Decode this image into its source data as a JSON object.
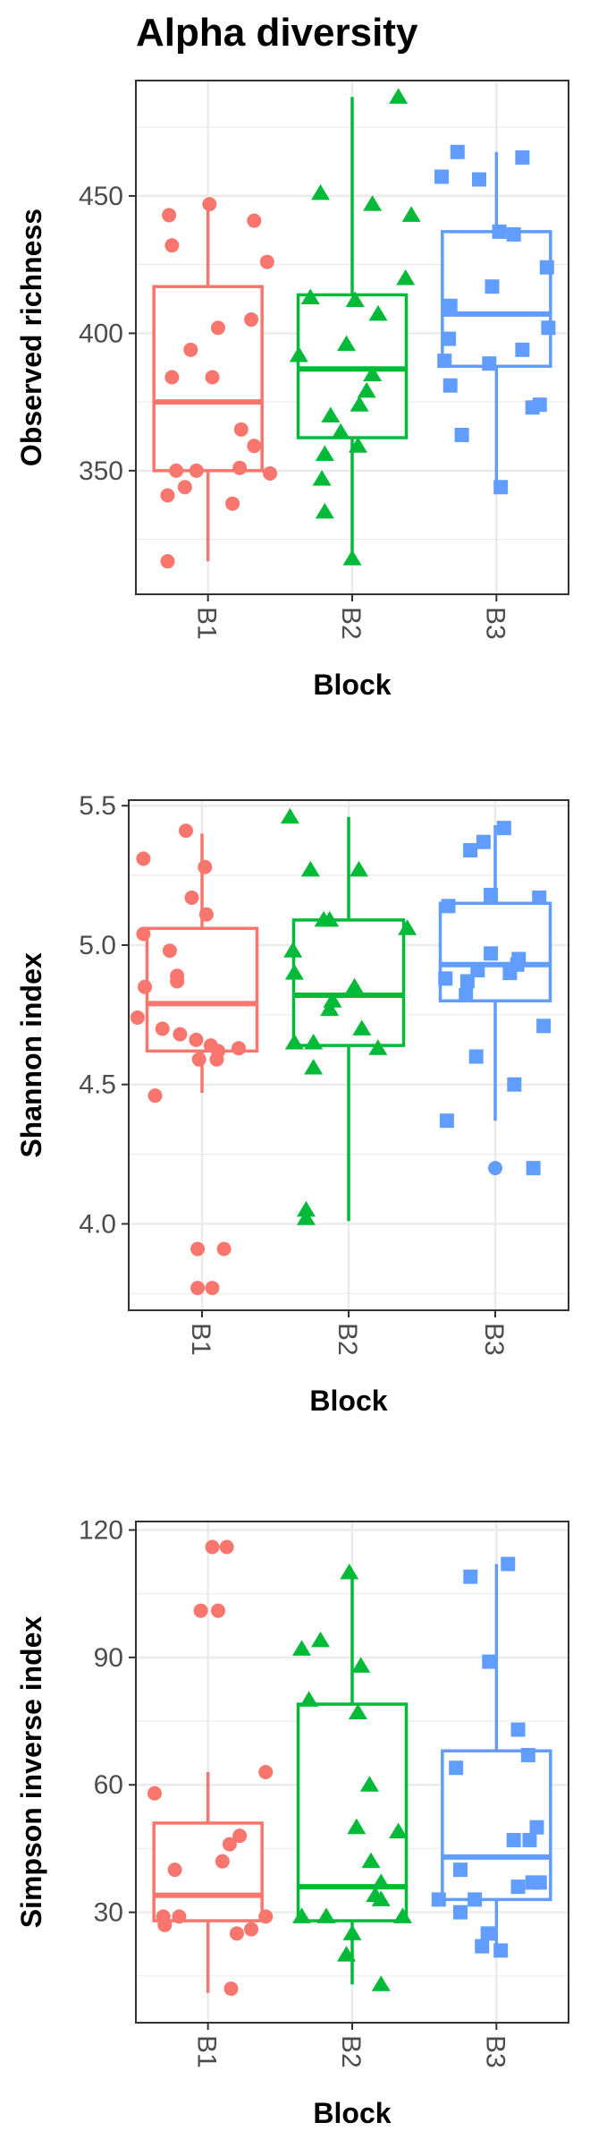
{
  "title": "Alpha diversity",
  "colors": {
    "B1": "#F8766D",
    "B2": "#00BA38",
    "B3": "#619CFF"
  },
  "chart_data": [
    {
      "type": "box",
      "xlabel": "Block",
      "ylabel": "Observed richness",
      "categories": [
        "B1",
        "B2",
        "B3"
      ],
      "ylim": [
        305,
        492
      ],
      "yticks": [
        350,
        400,
        450
      ],
      "grid": true,
      "boxes": [
        {
          "name": "B1",
          "q1": 350,
          "median": 375,
          "q3": 417,
          "whisker_low": 317,
          "whisker_high": 447
        },
        {
          "name": "B2",
          "q1": 362,
          "median": 387,
          "q3": 414,
          "whisker_low": 318,
          "whisker_high": 486
        },
        {
          "name": "B3",
          "q1": 388,
          "median": 407,
          "q3": 437,
          "whisker_low": 344,
          "whisker_high": 466
        }
      ],
      "points": [
        {
          "name": "B1",
          "marker": "circle",
          "values": [
            {
              "x": -0.27,
              "y": 443
            },
            {
              "x": -0.25,
              "y": 432
            },
            {
              "x": 0.01,
              "y": 447
            },
            {
              "x": 0.32,
              "y": 441
            },
            {
              "x": 0.41,
              "y": 426
            },
            {
              "x": 0.3,
              "y": 405
            },
            {
              "x": 0.07,
              "y": 402
            },
            {
              "x": -0.12,
              "y": 394
            },
            {
              "x": -0.25,
              "y": 384
            },
            {
              "x": 0.03,
              "y": 384
            },
            {
              "x": 0.23,
              "y": 365
            },
            {
              "x": 0.32,
              "y": 359
            },
            {
              "x": 0.22,
              "y": 351
            },
            {
              "x": -0.22,
              "y": 350
            },
            {
              "x": -0.08,
              "y": 350
            },
            {
              "x": 0.43,
              "y": 349
            },
            {
              "x": -0.16,
              "y": 344
            },
            {
              "x": -0.28,
              "y": 341
            },
            {
              "x": 0.17,
              "y": 338
            },
            {
              "x": -0.28,
              "y": 317
            }
          ]
        },
        {
          "name": "B2",
          "marker": "triangle",
          "values": [
            {
              "x": 0.32,
              "y": 486
            },
            {
              "x": -0.22,
              "y": 451
            },
            {
              "x": 0.14,
              "y": 447
            },
            {
              "x": 0.41,
              "y": 443
            },
            {
              "x": 0.37,
              "y": 420
            },
            {
              "x": -0.29,
              "y": 413
            },
            {
              "x": 0.02,
              "y": 412
            },
            {
              "x": 0.18,
              "y": 407
            },
            {
              "x": -0.37,
              "y": 392
            },
            {
              "x": -0.04,
              "y": 396
            },
            {
              "x": 0.14,
              "y": 385
            },
            {
              "x": 0.1,
              "y": 379
            },
            {
              "x": 0.05,
              "y": 374
            },
            {
              "x": -0.15,
              "y": 370
            },
            {
              "x": -0.08,
              "y": 364
            },
            {
              "x": 0.04,
              "y": 359
            },
            {
              "x": -0.19,
              "y": 356
            },
            {
              "x": -0.21,
              "y": 347
            },
            {
              "x": -0.19,
              "y": 335
            },
            {
              "x": 0.0,
              "y": 318
            }
          ]
        },
        {
          "name": "B3",
          "marker": "square",
          "values": [
            {
              "x": -0.27,
              "y": 466
            },
            {
              "x": -0.38,
              "y": 457
            },
            {
              "x": -0.12,
              "y": 456
            },
            {
              "x": 0.18,
              "y": 464
            },
            {
              "x": 0.02,
              "y": 437
            },
            {
              "x": 0.12,
              "y": 436
            },
            {
              "x": 0.35,
              "y": 424
            },
            {
              "x": -0.03,
              "y": 417
            },
            {
              "x": -0.32,
              "y": 410
            },
            {
              "x": -0.33,
              "y": 398
            },
            {
              "x": 0.36,
              "y": 402
            },
            {
              "x": 0.18,
              "y": 394
            },
            {
              "x": -0.36,
              "y": 390
            },
            {
              "x": -0.05,
              "y": 389
            },
            {
              "x": -0.32,
              "y": 381
            },
            {
              "x": 0.25,
              "y": 373
            },
            {
              "x": 0.3,
              "y": 374
            },
            {
              "x": -0.24,
              "y": 363
            },
            {
              "x": 0.03,
              "y": 344
            }
          ]
        }
      ]
    },
    {
      "type": "box",
      "xlabel": "Block",
      "ylabel": "Shannon index",
      "categories": [
        "B1",
        "B2",
        "B3"
      ],
      "ylim": [
        3.69,
        5.52
      ],
      "yticks": [
        4.0,
        4.5,
        5.0,
        5.5
      ],
      "ytick_labels": [
        "4.0",
        "4.5",
        "5.0",
        "5.5"
      ],
      "grid": true,
      "boxes": [
        {
          "name": "B1",
          "q1": 4.62,
          "median": 4.79,
          "q3": 5.06,
          "whisker_low": 4.47,
          "whisker_high": 5.4
        },
        {
          "name": "B2",
          "q1": 4.64,
          "median": 4.82,
          "q3": 5.09,
          "whisker_low": 4.01,
          "whisker_high": 5.46
        },
        {
          "name": "B3",
          "q1": 4.8,
          "median": 4.93,
          "q3": 5.15,
          "whisker_low": 4.37,
          "whisker_high": 5.43
        }
      ],
      "points": [
        {
          "name": "B1",
          "marker": "circle",
          "values": [
            {
              "x": -0.4,
              "y": 5.31
            },
            {
              "x": -0.11,
              "y": 5.41
            },
            {
              "x": 0.02,
              "y": 5.28
            },
            {
              "x": -0.07,
              "y": 5.17
            },
            {
              "x": 0.03,
              "y": 5.11
            },
            {
              "x": -0.4,
              "y": 5.04
            },
            {
              "x": -0.22,
              "y": 4.98
            },
            {
              "x": -0.39,
              "y": 4.85
            },
            {
              "x": -0.17,
              "y": 4.89
            },
            {
              "x": -0.17,
              "y": 4.87
            },
            {
              "x": -0.44,
              "y": 4.74
            },
            {
              "x": -0.27,
              "y": 4.7
            },
            {
              "x": -0.15,
              "y": 4.68
            },
            {
              "x": -0.04,
              "y": 4.66
            },
            {
              "x": 0.06,
              "y": 4.64
            },
            {
              "x": 0.11,
              "y": 4.62
            },
            {
              "x": 0.25,
              "y": 4.63
            },
            {
              "x": -0.02,
              "y": 4.59
            },
            {
              "x": 0.1,
              "y": 4.59
            },
            {
              "x": -0.32,
              "y": 4.46
            },
            {
              "x": -0.03,
              "y": 3.91
            },
            {
              "x": 0.15,
              "y": 3.91
            },
            {
              "x": -0.03,
              "y": 3.77
            },
            {
              "x": 0.07,
              "y": 3.77
            }
          ]
        },
        {
          "name": "B2",
          "marker": "triangle",
          "values": [
            {
              "x": -0.4,
              "y": 5.46
            },
            {
              "x": -0.26,
              "y": 5.27
            },
            {
              "x": 0.07,
              "y": 5.27
            },
            {
              "x": -0.17,
              "y": 5.09
            },
            {
              "x": -0.13,
              "y": 5.09
            },
            {
              "x": 0.4,
              "y": 5.06
            },
            {
              "x": -0.38,
              "y": 4.98
            },
            {
              "x": -0.37,
              "y": 4.9
            },
            {
              "x": 0.04,
              "y": 4.85
            },
            {
              "x": -0.11,
              "y": 4.8
            },
            {
              "x": -0.13,
              "y": 4.77
            },
            {
              "x": 0.09,
              "y": 4.7
            },
            {
              "x": -0.37,
              "y": 4.65
            },
            {
              "x": -0.24,
              "y": 4.65
            },
            {
              "x": 0.2,
              "y": 4.63
            },
            {
              "x": -0.24,
              "y": 4.56
            },
            {
              "x": -0.29,
              "y": 4.05
            },
            {
              "x": -0.29,
              "y": 4.02
            }
          ]
        },
        {
          "name": "B3",
          "marker": "square",
          "values": [
            {
              "x": 0.06,
              "y": 5.42
            },
            {
              "x": -0.08,
              "y": 5.37
            },
            {
              "x": -0.17,
              "y": 5.34
            },
            {
              "x": -0.32,
              "y": 5.14
            },
            {
              "x": -0.03,
              "y": 5.18
            },
            {
              "x": 0.3,
              "y": 5.17
            },
            {
              "x": -0.03,
              "y": 4.97
            },
            {
              "x": 0.16,
              "y": 4.95
            },
            {
              "x": -0.34,
              "y": 4.88
            },
            {
              "x": -0.19,
              "y": 4.87
            },
            {
              "x": -0.2,
              "y": 4.82
            },
            {
              "x": -0.12,
              "y": 4.91
            },
            {
              "x": 0.1,
              "y": 4.9
            },
            {
              "x": 0.15,
              "y": 4.93
            },
            {
              "x": 0.33,
              "y": 4.71
            },
            {
              "x": -0.13,
              "y": 4.6
            },
            {
              "x": 0.13,
              "y": 4.5
            },
            {
              "x": -0.33,
              "y": 4.37
            },
            {
              "x": 0.26,
              "y": 4.2
            }
          ]
        }
      ],
      "outliers": [
        {
          "name": "B3",
          "y": 4.2
        }
      ]
    },
    {
      "type": "box",
      "xlabel": "Block",
      "ylabel": "Simpson inverse index",
      "categories": [
        "B1",
        "B2",
        "B3"
      ],
      "ylim": [
        4,
        122
      ],
      "yticks": [
        30,
        60,
        90,
        120
      ],
      "grid": true,
      "boxes": [
        {
          "name": "B1",
          "q1": 28,
          "median": 34,
          "q3": 51,
          "whisker_low": 11,
          "whisker_high": 63
        },
        {
          "name": "B2",
          "q1": 28,
          "median": 36,
          "q3": 79,
          "whisker_low": 13,
          "whisker_high": 110
        },
        {
          "name": "B3",
          "q1": 33,
          "median": 43,
          "q3": 68,
          "whisker_low": 21,
          "whisker_high": 112
        }
      ],
      "points": [
        {
          "name": "B1",
          "marker": "circle",
          "values": [
            {
              "x": 0.03,
              "y": 116
            },
            {
              "x": 0.13,
              "y": 116
            },
            {
              "x": -0.05,
              "y": 101
            },
            {
              "x": 0.07,
              "y": 101
            },
            {
              "x": 0.4,
              "y": 63
            },
            {
              "x": -0.37,
              "y": 58
            },
            {
              "x": 0.22,
              "y": 48
            },
            {
              "x": 0.15,
              "y": 46
            },
            {
              "x": 0.1,
              "y": 42
            },
            {
              "x": -0.23,
              "y": 40
            },
            {
              "x": -0.31,
              "y": 29
            },
            {
              "x": 0.4,
              "y": 29
            },
            {
              "x": -0.3,
              "y": 27
            },
            {
              "x": -0.2,
              "y": 29
            },
            {
              "x": 0.3,
              "y": 26
            },
            {
              "x": 0.2,
              "y": 25
            },
            {
              "x": 0.16,
              "y": 12
            }
          ]
        },
        {
          "name": "B2",
          "marker": "triangle",
          "values": [
            {
              "x": -0.02,
              "y": 110
            },
            {
              "x": -0.35,
              "y": 92
            },
            {
              "x": -0.22,
              "y": 94
            },
            {
              "x": 0.06,
              "y": 88
            },
            {
              "x": -0.3,
              "y": 80
            },
            {
              "x": 0.04,
              "y": 77
            },
            {
              "x": 0.12,
              "y": 60
            },
            {
              "x": 0.03,
              "y": 50
            },
            {
              "x": 0.32,
              "y": 49
            },
            {
              "x": 0.13,
              "y": 42
            },
            {
              "x": 0.2,
              "y": 37
            },
            {
              "x": 0.16,
              "y": 34
            },
            {
              "x": 0.2,
              "y": 33
            },
            {
              "x": -0.35,
              "y": 29
            },
            {
              "x": -0.18,
              "y": 29
            },
            {
              "x": 0.35,
              "y": 29
            },
            {
              "x": 0.0,
              "y": 25
            },
            {
              "x": -0.04,
              "y": 20
            },
            {
              "x": 0.2,
              "y": 13
            }
          ]
        },
        {
          "name": "B3",
          "marker": "square",
          "values": [
            {
              "x": 0.08,
              "y": 112
            },
            {
              "x": -0.18,
              "y": 109
            },
            {
              "x": -0.05,
              "y": 89
            },
            {
              "x": 0.15,
              "y": 73
            },
            {
              "x": 0.22,
              "y": 67
            },
            {
              "x": -0.28,
              "y": 64
            },
            {
              "x": 0.28,
              "y": 50
            },
            {
              "x": 0.23,
              "y": 47
            },
            {
              "x": 0.12,
              "y": 47
            },
            {
              "x": -0.25,
              "y": 40
            },
            {
              "x": 0.3,
              "y": 37
            },
            {
              "x": 0.15,
              "y": 36
            },
            {
              "x": 0.25,
              "y": 37
            },
            {
              "x": -0.15,
              "y": 33
            },
            {
              "x": -0.4,
              "y": 33
            },
            {
              "x": -0.25,
              "y": 30
            },
            {
              "x": -0.06,
              "y": 25
            },
            {
              "x": 0.03,
              "y": 21
            },
            {
              "x": -0.1,
              "y": 22
            }
          ]
        }
      ]
    }
  ]
}
